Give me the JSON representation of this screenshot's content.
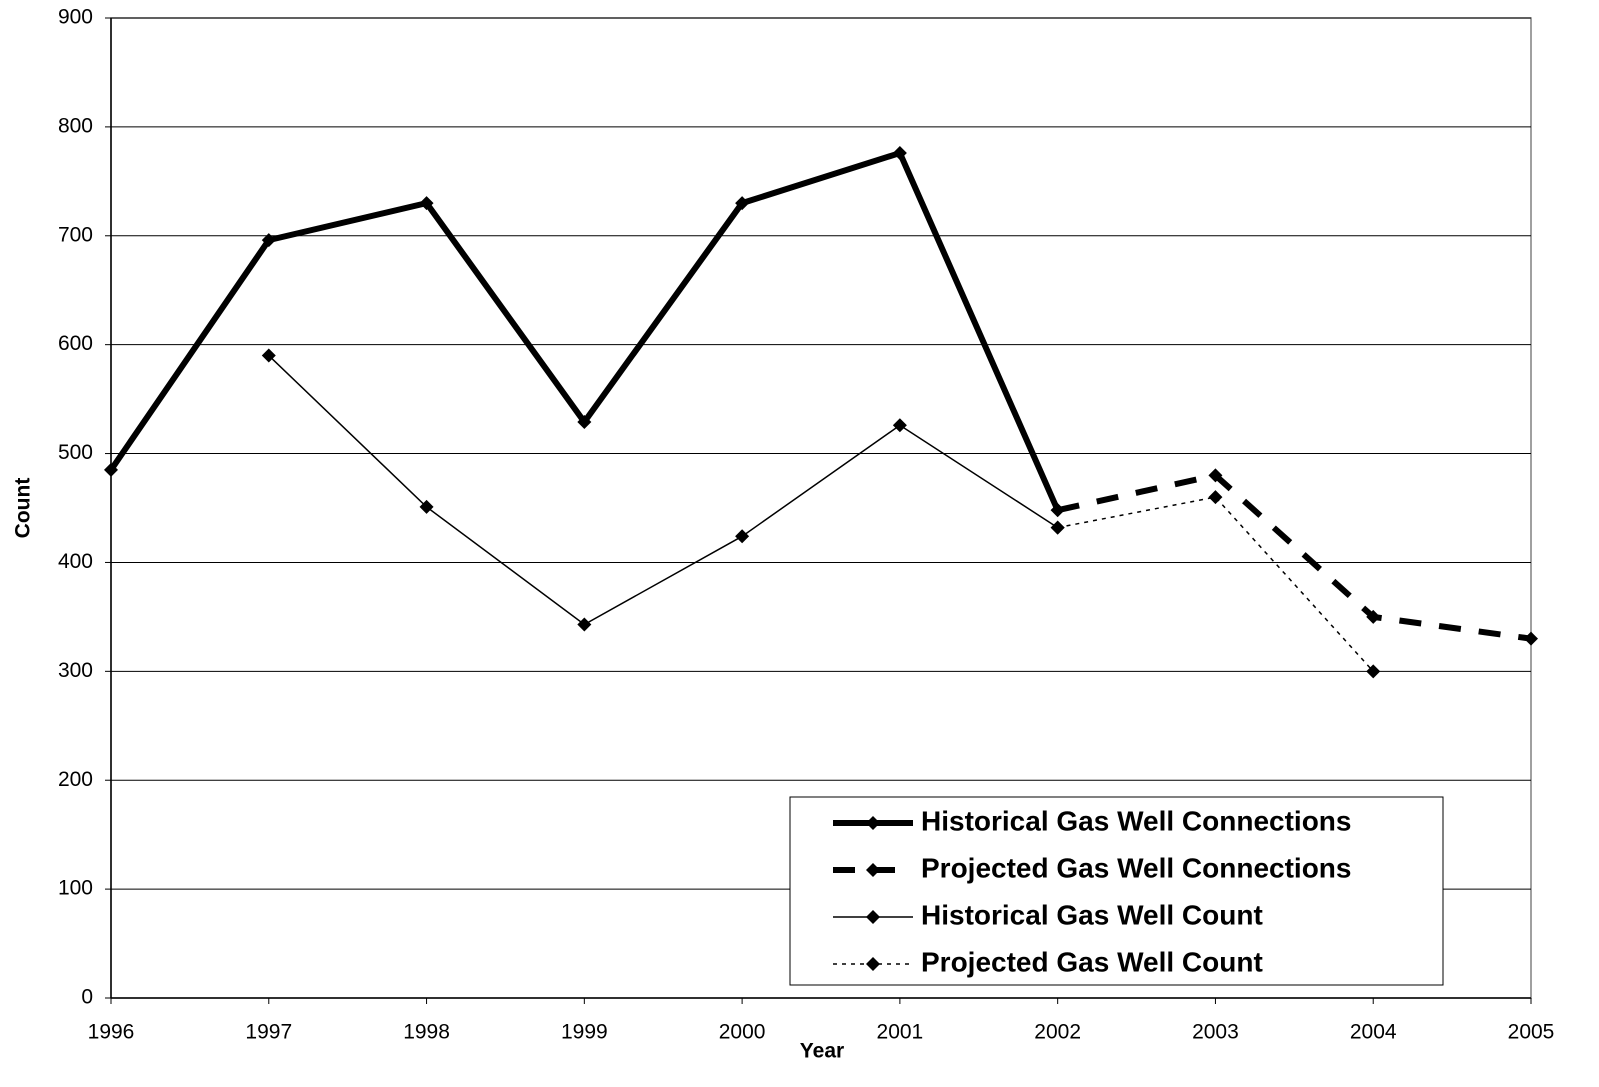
{
  "chart_data": {
    "type": "line",
    "x_label": "Year",
    "y_label": "Count",
    "x": [
      1996,
      1997,
      1998,
      1999,
      2000,
      2001,
      2002,
      2003,
      2004,
      2005
    ],
    "series": [
      {
        "name": "Historical Gas Well Connections",
        "color": "#000000",
        "width": 6,
        "dash": "solid",
        "values": [
          485,
          696,
          730,
          529,
          730,
          776,
          448,
          null,
          null,
          null
        ]
      },
      {
        "name": "Projected Gas Well Connections",
        "color": "#000000",
        "width": 6,
        "dash": "dashed",
        "values": [
          null,
          null,
          null,
          null,
          null,
          null,
          448,
          480,
          350,
          330
        ]
      },
      {
        "name": "Historical Gas Well Count",
        "color": "#000000",
        "width": 1.5,
        "dash": "solid",
        "values": [
          null,
          590,
          451,
          343,
          424,
          526,
          432,
          null,
          null,
          null
        ]
      },
      {
        "name": "Projected Gas Well Count",
        "color": "#000000",
        "width": 1.5,
        "dash": "dotted",
        "values": [
          null,
          null,
          null,
          null,
          null,
          null,
          432,
          460,
          300,
          null
        ]
      }
    ],
    "xlim": [
      1996,
      2005
    ],
    "xticks": [
      1996,
      1997,
      1998,
      1999,
      2000,
      2001,
      2002,
      2003,
      2004,
      2005
    ],
    "ylim": [
      0,
      900
    ],
    "yticks": [
      0,
      100,
      200,
      300,
      400,
      500,
      600,
      700,
      800,
      900
    ],
    "grid": true,
    "legend": "lower right"
  }
}
